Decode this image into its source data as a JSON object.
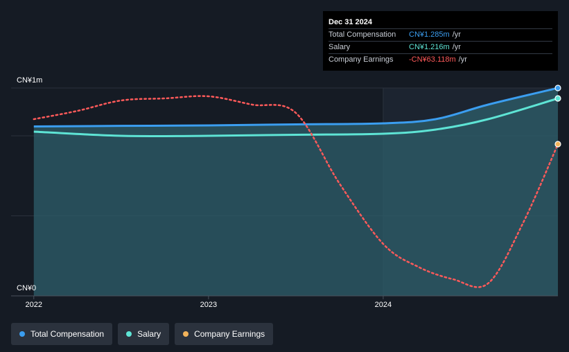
{
  "tooltip": {
    "date": "Dec 31 2024",
    "rows": [
      {
        "label": "Total Compensation",
        "value": "CN¥1.285m",
        "unit": "/yr",
        "color": "#3b9ef0"
      },
      {
        "label": "Salary",
        "value": "CN¥1.216m",
        "unit": "/yr",
        "color": "#5ee4d5"
      },
      {
        "label": "Company Earnings",
        "value": "-CN¥63.118m",
        "unit": "/yr",
        "color": "#ff5a5a"
      }
    ]
  },
  "legend": [
    {
      "label": "Total Compensation",
      "color": "#3b9ef0"
    },
    {
      "label": "Salary",
      "color": "#5ee4d5"
    },
    {
      "label": "Company Earnings",
      "color": "#f2b35a"
    }
  ],
  "chart_data": {
    "type": "line",
    "title": "",
    "xlabel": "",
    "ylabel": "",
    "y_tick_labels": [
      "CN¥1m",
      "CN¥0"
    ],
    "y_ticks": [
      1.0,
      0
    ],
    "ylim": [
      0,
      1.0
    ],
    "x_tick_labels": [
      "2022",
      "2023",
      "2024"
    ],
    "x_ticks": [
      2022.0,
      2023.0,
      2024.0
    ],
    "xlim": [
      2021.87,
      2025.0
    ],
    "highlight_start": 2024.0,
    "series": [
      {
        "name": "Total Compensation",
        "color": "#3b9ef0",
        "x": [
          2022.0,
          2022.5,
          2023.0,
          2023.5,
          2024.0,
          2024.3,
          2024.6,
          2025.0
        ],
        "y": [
          0.815,
          0.818,
          0.82,
          0.825,
          0.83,
          0.85,
          0.92,
          1.0
        ]
      },
      {
        "name": "Salary",
        "color": "#5ee4d5",
        "x": [
          2022.0,
          2022.5,
          2023.0,
          2023.5,
          2024.0,
          2024.3,
          2024.6,
          2025.0
        ],
        "y": [
          0.79,
          0.77,
          0.77,
          0.775,
          0.78,
          0.8,
          0.85,
          0.95
        ]
      },
      {
        "name": "Company Earnings",
        "color": "#ff5a5a",
        "dashed": true,
        "x": [
          2022.0,
          2022.25,
          2022.5,
          2022.75,
          2023.0,
          2023.25,
          2023.5,
          2023.75,
          2024.0,
          2024.2,
          2024.4,
          2024.6,
          2024.8,
          2025.0
        ],
        "y": [
          0.85,
          0.89,
          0.94,
          0.95,
          0.96,
          0.92,
          0.88,
          0.54,
          0.25,
          0.14,
          0.08,
          0.06,
          0.35,
          0.73
        ]
      }
    ]
  }
}
